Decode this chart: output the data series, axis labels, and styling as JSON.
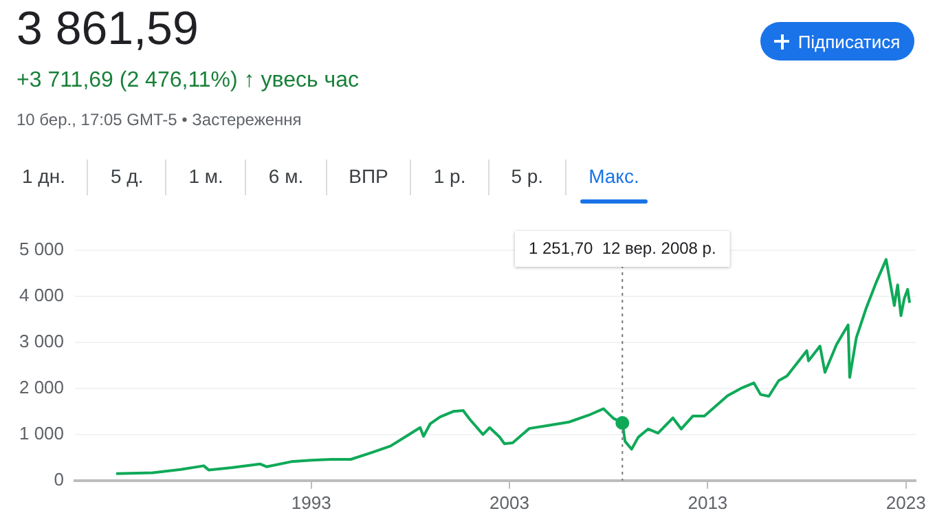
{
  "chart_data": {
    "type": "line",
    "title": "3 861,59",
    "subtitle": "+3 711,69 (2 476,11%) ↑ увесь час",
    "annotations": [
      "10 бер., 17:05 GMT-5 • Застереження",
      "Підписатися",
      "1 дн.",
      "5 д.",
      "1 м.",
      "6 м.",
      "ВПР",
      "1 р.",
      "5 р.",
      "Макс.",
      "1 251,70  12 вер. 2008 р."
    ],
    "x": [
      "1983-03",
      "1985-01",
      "1986-06",
      "1987-08",
      "1987-11",
      "1989-01",
      "1990-06",
      "1990-10",
      "1992-01",
      "1993-01",
      "1994-01",
      "1995-01",
      "1996-01",
      "1997-01",
      "1997-10",
      "1998-07",
      "1998-09",
      "1999-01",
      "1999-07",
      "2000-03",
      "2000-09",
      "2001-01",
      "2001-09",
      "2002-01",
      "2002-07",
      "2002-10",
      "2003-03",
      "2004-01",
      "2005-01",
      "2006-01",
      "2007-01",
      "2007-10",
      "2008-04",
      "2008-09-12",
      "2008-11",
      "2009-03",
      "2009-07",
      "2010-01",
      "2010-07",
      "2011-04",
      "2011-09",
      "2012-04",
      "2012-11",
      "2013-07",
      "2014-01",
      "2014-09",
      "2015-05",
      "2015-09",
      "2016-02",
      "2016-08",
      "2017-01",
      "2018-01",
      "2018-02",
      "2018-09",
      "2018-12",
      "2019-07",
      "2020-02",
      "2020-03",
      "2020-07",
      "2021-01",
      "2021-07",
      "2022-01",
      "2022-06",
      "2022-08",
      "2022-10",
      "2022-12",
      "2023-02",
      "2023-03-10"
    ],
    "values": [
      150,
      170,
      240,
      320,
      230,
      280,
      360,
      300,
      410,
      440,
      460,
      460,
      600,
      750,
      950,
      1150,
      960,
      1230,
      1380,
      1500,
      1520,
      1330,
      1000,
      1150,
      950,
      800,
      820,
      1130,
      1200,
      1270,
      1420,
      1560,
      1350,
      1251.7,
      850,
      680,
      940,
      1120,
      1030,
      1360,
      1120,
      1400,
      1400,
      1650,
      1840,
      2000,
      2120,
      1870,
      1830,
      2170,
      2270,
      2820,
      2600,
      2920,
      2350,
      2950,
      3380,
      2240,
      3100,
      3750,
      4300,
      4800,
      3800,
      4250,
      3580,
      3950,
      4150,
      3860
    ],
    "color": "#0fa958",
    "xlim": [
      "1981-02",
      "2023-07"
    ],
    "xticks": [
      "1993",
      "2003",
      "2013",
      "2023"
    ],
    "ylim": [
      0,
      5000
    ],
    "yticks": [
      0,
      {
        "value": 1000,
        "label": "1 000"
      },
      {
        "value": 2000,
        "label": "2 000"
      },
      {
        "value": 3000,
        "label": "3 000"
      },
      {
        "value": 4000,
        "label": "4 000"
      },
      {
        "value": 5000,
        "label": "5 000"
      }
    ],
    "ref_lines": [
      {
        "axis": "x",
        "value": "2008-09-12",
        "color": "#757575",
        "line_style": "dotted"
      }
    ],
    "grid": "y",
    "legend": false,
    "marker": "none",
    "line_style": "solid"
  }
}
